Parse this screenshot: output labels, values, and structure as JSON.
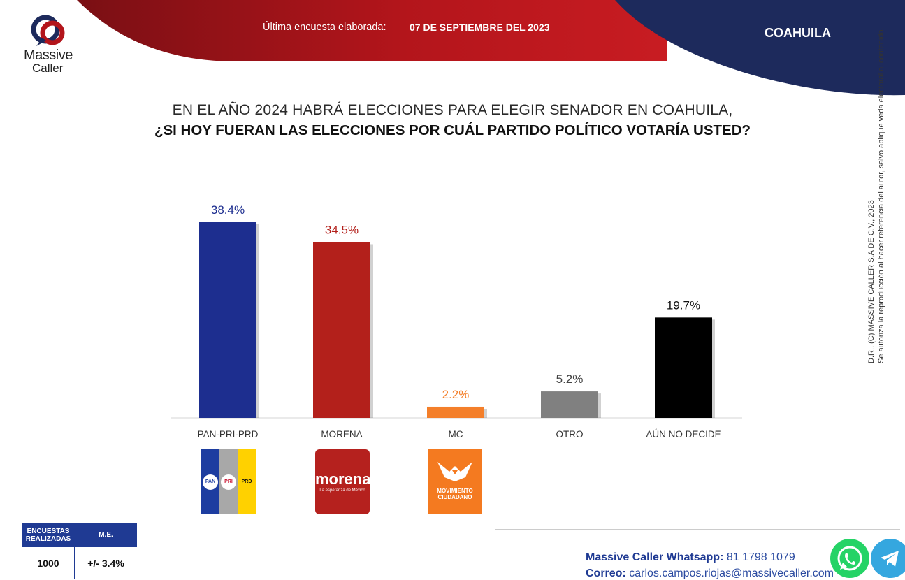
{
  "header": {
    "brand_line1": "Massive",
    "brand_line2": "Caller",
    "survey_date_label": "Última encuesta elaborada:",
    "survey_date": "07 DE SEPTIEMBRE DEL 2023",
    "state": "COAHUILA",
    "colors": {
      "red": "#b3151b",
      "navy": "#1d2a5c"
    }
  },
  "question": {
    "line1": "EN EL AÑO 2024 HABRÁ ELECCIONES PARA ELEGIR SENADOR EN COAHUILA,",
    "line2": "¿SI HOY FUERAN LAS ELECCIONES POR CUÁL PARTIDO POLÍTICO VOTARÍA USTED?"
  },
  "chart_data": {
    "type": "bar",
    "categories": [
      "PAN-PRI-PRD",
      "MORENA",
      "MC",
      "OTRO",
      "AÚN NO DECIDE"
    ],
    "values": [
      38.4,
      34.5,
      2.2,
      5.2,
      19.7
    ],
    "data_labels": [
      "38.4%",
      "34.5%",
      "2.2%",
      "5.2%",
      "19.7%"
    ],
    "colors": [
      "#1d2e8f",
      "#b3201b",
      "#f47f2a",
      "#808080",
      "#000000"
    ],
    "label_colors": [
      "#1d2e8f",
      "#b3201b",
      "#f47f2a",
      "#444444",
      "#111111"
    ],
    "title": "",
    "xlabel": "",
    "ylabel": "",
    "ylim": [
      0,
      40
    ],
    "grid": false,
    "legend": "none"
  },
  "party_logos": {
    "alianza": {
      "pan": "PAN",
      "pri": "PRI",
      "prd": "PRD"
    },
    "morena": {
      "name": "morena",
      "tagline": "La esperanza de México"
    },
    "mc": {
      "line1": "MOVIMIENTO",
      "line2": "CIUDADANO",
      "icon": "eagle-icon"
    }
  },
  "copyright": {
    "line1": "D.R., (C) MASSIVE CALLER S.A DE C.V., 2023",
    "line2": "Se autoriza la reproducción al hacer referencia del autor, salvo aplique veda electoral al contenido."
  },
  "stats": {
    "header_surveys": "ENCUESTAS REALIZADAS",
    "header_me": "M.E.",
    "surveys": "1000",
    "me": "+/- 3.4%"
  },
  "contact": {
    "whatsapp_label": "Massive Caller Whatsapp:",
    "whatsapp_number": "81 1798 1079",
    "email_label": "Correo:",
    "email": "carlos.campos.riojas@massivecaller.com",
    "icons": [
      "whatsapp-icon",
      "telegram-icon"
    ],
    "colors": {
      "whatsapp": "#25d366",
      "telegram": "#35a7df"
    }
  }
}
